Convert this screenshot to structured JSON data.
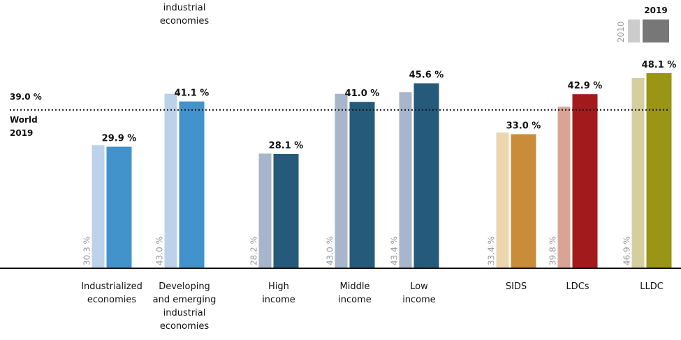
{
  "chart_data": {
    "type": "bar",
    "series": [
      {
        "name": "2010",
        "values": [
          30.3,
          43.0,
          28.2,
          43.0,
          43.4,
          33.4,
          39.8,
          46.9
        ]
      },
      {
        "name": "2019",
        "values": [
          29.9,
          41.1,
          28.1,
          41.0,
          45.6,
          33.0,
          42.9,
          48.1
        ]
      }
    ],
    "categories": [
      [
        "Industrialized",
        "economies"
      ],
      [
        "Developing",
        "and emerging",
        "industrial",
        "economies"
      ],
      [
        "High",
        "income"
      ],
      [
        "Middle",
        "income"
      ],
      [
        "Low",
        "income"
      ],
      [
        "SIDS"
      ],
      [
        "LDCs"
      ],
      [
        "LLDC"
      ]
    ],
    "labels_2019": [
      "29.9 %",
      "41.1 %",
      "28.1 %",
      "41.0 %",
      "45.6 %",
      "33.0 %",
      "42.9 %",
      "48.1 %"
    ],
    "labels_2010": [
      "30.3 %",
      "43.0 %",
      "28.2 %",
      "43.0 %",
      "43.4 %",
      "33.4 %",
      "39.8 %",
      "46.9 %"
    ],
    "colors_2010": [
      "#bcd2ea",
      "#bcd2ea",
      "#a7b6ca",
      "#a7b6ca",
      "#a7b6ca",
      "#ecd6b0",
      "#d9a496",
      "#d5cf9f"
    ],
    "colors_2019": [
      "#4292cb",
      "#4292cb",
      "#255a7b",
      "#255a7b",
      "#255a7b",
      "#c98d3a",
      "#a31a1d",
      "#9a9514"
    ],
    "reference_line": {
      "value": 39.0,
      "label": "39.0 %",
      "caption": [
        "World",
        "2019"
      ]
    },
    "legend": {
      "year_old": "2010",
      "year_new": "2019",
      "color_old": "#cccccc",
      "color_new": "#777777",
      "placement": "top-right"
    },
    "top_fragment": [
      "industrial",
      "economies"
    ],
    "ylim": [
      0,
      50
    ],
    "grid": false
  }
}
